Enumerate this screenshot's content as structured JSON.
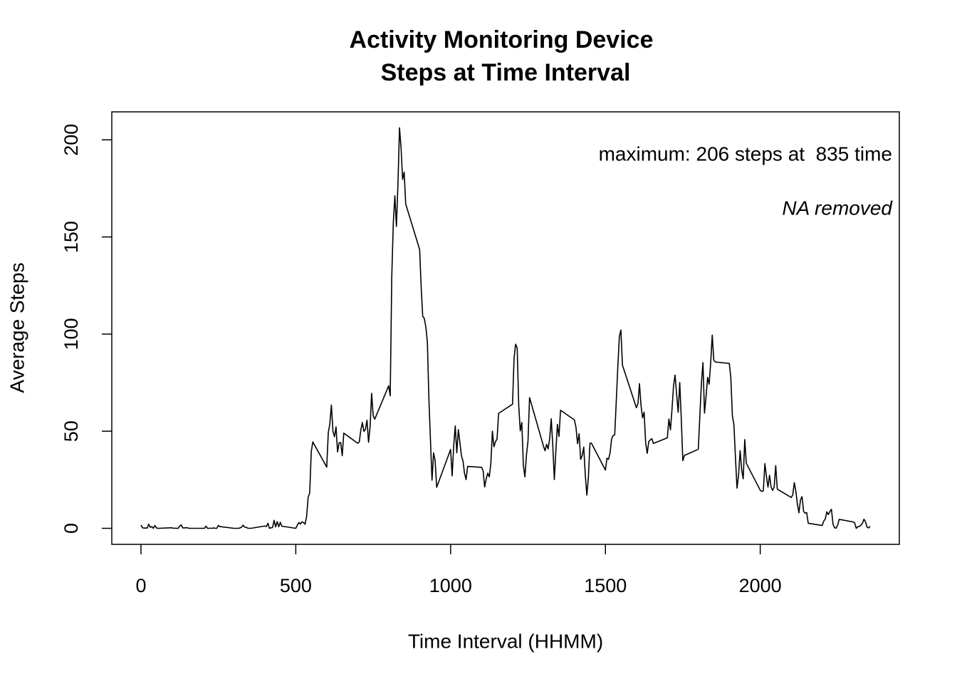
{
  "chart_data": {
    "type": "line",
    "title": "Activity Monitoring Device",
    "subtitle": "Steps at Time Interval",
    "x_label": "Time Interval (HHMM)",
    "y_label": "Average Steps",
    "annotations": [
      "maximum: 206 steps at  835 time",
      "NA removed"
    ],
    "color": "#000000",
    "xlim": [
      -94.2,
      2449.2
    ],
    "xticks": [
      0,
      500,
      1000,
      1500,
      2000
    ],
    "ylim": [
      -8.25,
      214.4
    ],
    "yticks": [
      0,
      50,
      100,
      150,
      200
    ],
    "grid": false,
    "x": [
      0,
      5,
      10,
      15,
      20,
      25,
      30,
      35,
      40,
      45,
      50,
      55,
      100,
      105,
      110,
      115,
      120,
      125,
      130,
      135,
      140,
      145,
      150,
      155,
      200,
      205,
      210,
      215,
      220,
      225,
      230,
      235,
      240,
      245,
      250,
      255,
      300,
      305,
      310,
      315,
      320,
      325,
      330,
      335,
      340,
      345,
      350,
      355,
      400,
      405,
      410,
      415,
      420,
      425,
      430,
      435,
      440,
      445,
      450,
      455,
      500,
      505,
      510,
      515,
      520,
      525,
      530,
      535,
      540,
      545,
      550,
      555,
      600,
      605,
      610,
      615,
      620,
      625,
      630,
      635,
      640,
      645,
      650,
      655,
      700,
      705,
      710,
      715,
      720,
      725,
      730,
      735,
      740,
      745,
      750,
      755,
      800,
      805,
      810,
      815,
      820,
      825,
      830,
      835,
      840,
      845,
      850,
      855,
      900,
      905,
      910,
      915,
      920,
      925,
      930,
      935,
      940,
      945,
      950,
      955,
      1000,
      1005,
      1010,
      1015,
      1020,
      1025,
      1030,
      1035,
      1040,
      1045,
      1050,
      1055,
      1100,
      1105,
      1110,
      1115,
      1120,
      1125,
      1130,
      1135,
      1140,
      1145,
      1150,
      1155,
      1200,
      1205,
      1210,
      1215,
      1220,
      1225,
      1230,
      1235,
      1240,
      1245,
      1250,
      1255,
      1300,
      1305,
      1310,
      1315,
      1320,
      1325,
      1330,
      1335,
      1340,
      1345,
      1350,
      1355,
      1400,
      1405,
      1410,
      1415,
      1420,
      1425,
      1430,
      1435,
      1440,
      1445,
      1450,
      1455,
      1500,
      1505,
      1510,
      1515,
      1520,
      1525,
      1530,
      1535,
      1540,
      1545,
      1550,
      1555,
      1600,
      1605,
      1610,
      1615,
      1620,
      1625,
      1630,
      1635,
      1640,
      1645,
      1650,
      1655,
      1700,
      1705,
      1710,
      1715,
      1720,
      1725,
      1730,
      1735,
      1740,
      1745,
      1750,
      1755,
      1800,
      1805,
      1810,
      1815,
      1820,
      1825,
      1830,
      1835,
      1840,
      1845,
      1850,
      1855,
      1900,
      1905,
      1910,
      1915,
      1920,
      1925,
      1930,
      1935,
      1940,
      1945,
      1950,
      1955,
      2000,
      2005,
      2010,
      2015,
      2020,
      2025,
      2030,
      2035,
      2040,
      2045,
      2050,
      2055,
      2100,
      2105,
      2110,
      2115,
      2120,
      2125,
      2130,
      2135,
      2140,
      2145,
      2150,
      2155,
      2200,
      2205,
      2210,
      2215,
      2220,
      2225,
      2230,
      2235,
      2240,
      2245,
      2250,
      2255,
      2300,
      2305,
      2310,
      2315,
      2320,
      2325,
      2330,
      2335,
      2340,
      2345,
      2350,
      2355
    ],
    "values": [
      1.7,
      0.3,
      0.1,
      0.2,
      0.1,
      2.1,
      0.5,
      0.9,
      0,
      1.5,
      0.2,
      0,
      0.3,
      0,
      0.1,
      0,
      0,
      1.1,
      1.8,
      0.2,
      0.2,
      0.3,
      0.3,
      0,
      0,
      0,
      1.1,
      0,
      0,
      0.1,
      0,
      0.2,
      0,
      0,
      1.5,
      0.9,
      0,
      0,
      0,
      0,
      0.2,
      0.6,
      1.6,
      0.6,
      0.5,
      0.1,
      0,
      0,
      1.2,
      0.9,
      2.6,
      0,
      0.3,
      0.4,
      4.1,
      0.7,
      3.5,
      0.8,
      3.1,
      1.1,
      0,
      1.6,
      3,
      2.2,
      3.3,
      3,
      2.1,
      6.1,
      16,
      18.3,
      39.5,
      44.5,
      31.5,
      49.3,
      53.8,
      63.5,
      50,
      47.1,
      52.2,
      39.3,
      44,
      44.2,
      37.4,
      49,
      43.8,
      44.4,
      50.5,
      54.5,
      49.9,
      51,
      55.7,
      44.3,
      52.3,
      69.5,
      58,
      56.2,
      73.4,
      68.2,
      129.4,
      157.5,
      171.2,
      155.4,
      177.3,
      206.2,
      195.9,
      179.6,
      183.4,
      167,
      143.5,
      124,
      109.1,
      108.1,
      103.7,
      95.9,
      66.2,
      45.2,
      24.8,
      38.8,
      34.9,
      21.1,
      40.6,
      27,
      42.4,
      52.7,
      38.9,
      50.8,
      44.3,
      37.4,
      34.7,
      28.3,
      25.1,
      31.9,
      31.4,
      29.7,
      21.3,
      25.5,
      28.4,
      26.5,
      33.4,
      50,
      42,
      44.6,
      46,
      59.2,
      63.9,
      87.7,
      94.8,
      92.8,
      63.4,
      50.2,
      54.5,
      32.4,
      26.5,
      37.7,
      45,
      67.3,
      42.3,
      39.9,
      43.3,
      40.9,
      46.2,
      56.4,
      42.8,
      25.1,
      39.9,
      53.5,
      47.3,
      60.8,
      55.8,
      51.9,
      43.6,
      48.7,
      35.5,
      37.5,
      41.8,
      27.5,
      17.1,
      26.1,
      43.8,
      43.8,
      30,
      36.1,
      35.5,
      38.8,
      46,
      47.8,
      48.1,
      65.3,
      82.9,
      98.7,
      102.1,
      84,
      62.1,
      64.1,
      74.5,
      63.2,
      56.9,
      59.8,
      43.9,
      38.6,
      44.7,
      45.5,
      46.2,
      43.7,
      46.6,
      56.3,
      50.7,
      61.2,
      73.4,
      78.9,
      68.9,
      59.7,
      75.1,
      56.5,
      34.8,
      37.5,
      40.7,
      58,
      74.7,
      85.3,
      59.3,
      67.8,
      77.7,
      74.2,
      85.3,
      99.5,
      86.6,
      85.6,
      84.9,
      77.8,
      58,
      53.4,
      36.3,
      20.7,
      27.4,
      40,
      30.2,
      25.5,
      45.7,
      33.5,
      19.6,
      19,
      19.3,
      33.3,
      26.8,
      21.2,
      27.3,
      21.3,
      19.5,
      21.3,
      32.3,
      20.2,
      15.9,
      17.2,
      23.5,
      19.2,
      12.5,
      8,
      14.7,
      16.3,
      8.7,
      7.8,
      8.1,
      2.6,
      1.5,
      3.7,
      4.8,
      8.5,
      7.1,
      8.7,
      9.8,
      2.2,
      0.3,
      0.1,
      1.6,
      4.6,
      3.3,
      2.8,
      0,
      0.8,
      1,
      1.6,
      2.6,
      4.7,
      3.3,
      0.6,
      0.2,
      1.1
    ]
  }
}
